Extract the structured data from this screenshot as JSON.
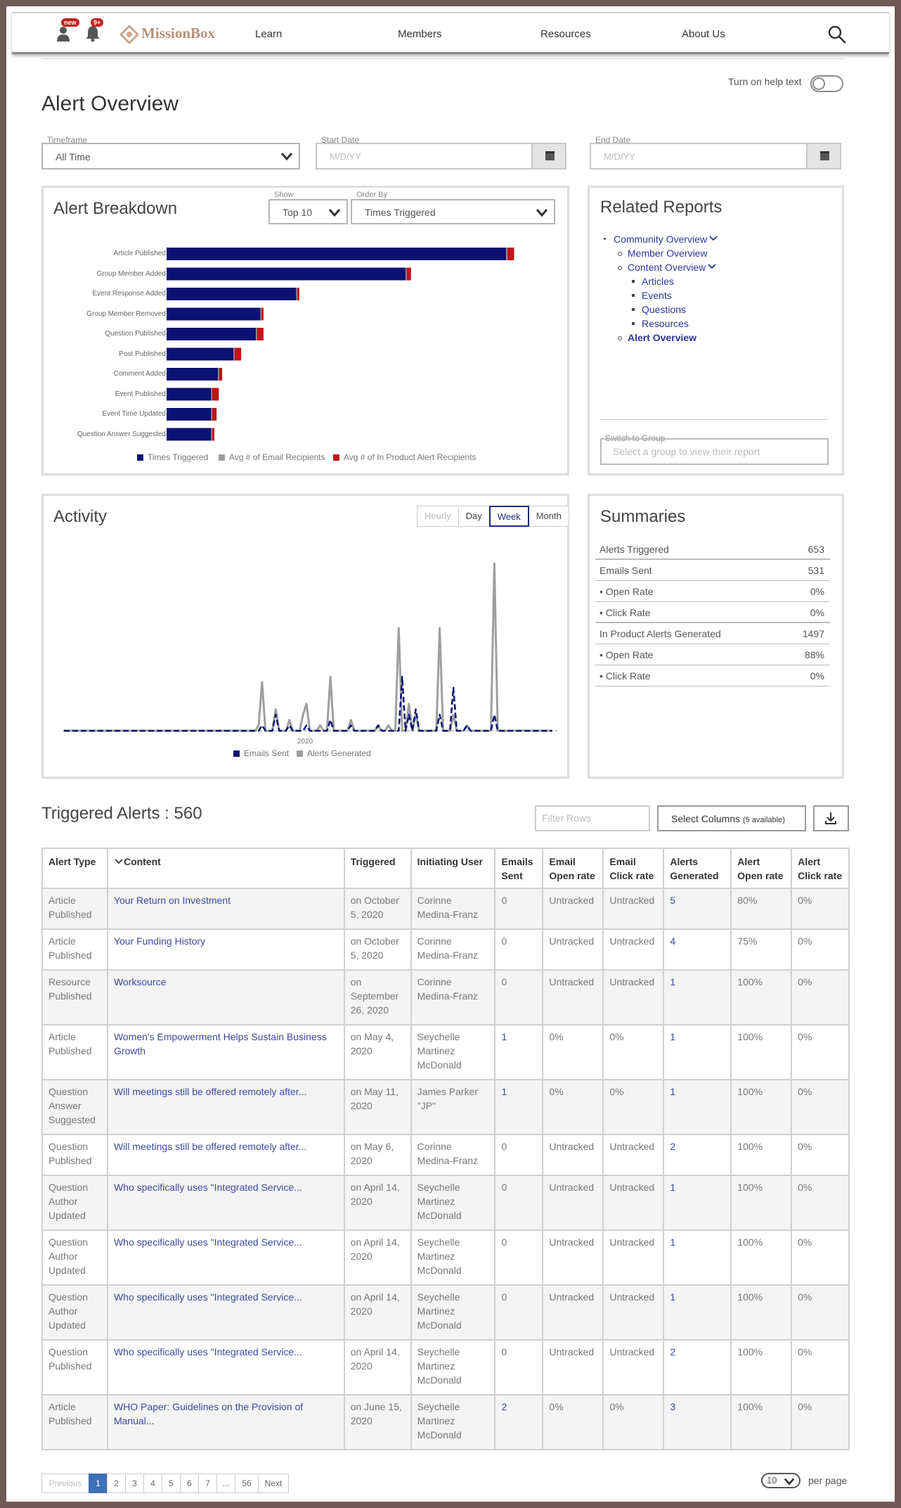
{
  "nav": {
    "badge_user": "new",
    "badge_bell": "9+",
    "logo": "MissionBox",
    "links": [
      "Learn",
      "Members",
      "Resources",
      "About Us"
    ]
  },
  "help_text_label": "Turn on help text",
  "page_title": "Alert Overview",
  "filters": {
    "timeframe_label": "Timeframe",
    "timeframe_value": "All Time",
    "start_label": "Start Date",
    "start_placeholder": "M/D/YY",
    "end_label": "End Date",
    "end_placeholder": "M/D/YY"
  },
  "breakdown": {
    "title": "Alert Breakdown",
    "show_label": "Show",
    "show_value": "Top 10",
    "order_label": "Order By",
    "order_value": "Times Triggered"
  },
  "chart_data": [
    {
      "type": "bar",
      "orientation": "horizontal",
      "stacked": true,
      "title": "Alert Breakdown",
      "categories": [
        "Article Published",
        "Group Member Added",
        "Event Response Added",
        "Group Member Removed",
        "Question Published",
        "Post Published",
        "Comment Added",
        "Event Published",
        "Event Time Updated",
        "Question Answer Suggested"
      ],
      "series": [
        {
          "name": "Times Triggered",
          "color": "#0b1273",
          "values": [
            152,
            107,
            58,
            42,
            40,
            30,
            23,
            20,
            20,
            20
          ]
        },
        {
          "name": "Avg # of Email Recipients",
          "color": "#9e9e9e",
          "values": [
            0.5,
            0.3,
            0.2,
            0.2,
            0.2,
            0.2,
            0.2,
            0.2,
            0.2,
            0.2
          ]
        },
        {
          "name": "Avg # of In Product Alert Recipients",
          "color": "#c0131a",
          "values": [
            3,
            2,
            1,
            1,
            3,
            3,
            1.5,
            3,
            2,
            1
          ]
        }
      ],
      "legend": "bottom"
    },
    {
      "type": "line",
      "title": "Activity",
      "x_tick_labels": [
        "2020"
      ],
      "series": [
        {
          "name": "Emails Sent",
          "color": "#0b1273",
          "style": "dashed",
          "values": [
            0,
            0,
            0,
            0,
            0,
            0,
            0,
            0,
            0,
            0,
            0,
            0,
            0,
            0,
            0,
            0,
            0,
            0,
            0,
            0,
            0,
            0,
            0,
            0,
            0,
            0,
            0,
            0,
            0,
            0,
            0,
            0,
            0,
            0,
            0,
            0,
            0,
            0,
            0,
            0,
            0,
            0,
            0,
            0,
            0,
            0,
            0,
            0,
            0,
            0,
            0,
            0,
            0,
            0,
            0,
            0,
            0,
            0,
            1,
            0,
            0,
            0,
            3,
            0,
            0,
            0,
            1,
            0,
            0,
            0,
            0,
            1,
            0,
            0,
            0,
            0,
            0,
            0,
            2,
            0,
            0,
            0,
            0,
            0,
            1,
            0,
            0,
            0,
            0,
            0,
            0,
            0,
            1,
            0,
            0,
            0,
            0,
            0,
            0,
            10,
            0,
            3,
            0,
            4,
            0,
            0,
            0,
            0,
            0,
            0,
            3,
            0,
            0,
            0,
            8,
            0,
            0,
            0,
            1,
            0,
            0,
            0,
            0,
            0,
            0,
            0,
            3,
            0,
            0,
            0,
            0,
            0,
            0,
            0,
            0,
            0,
            0,
            0,
            0,
            0,
            0,
            0,
            0,
            0
          ]
        },
        {
          "name": "Alerts Generated",
          "color": "#9e9e9e",
          "style": "solid",
          "values": [
            0,
            0,
            0,
            0,
            0,
            0,
            0,
            0,
            0,
            0,
            0,
            0,
            0,
            0,
            0,
            0,
            0,
            0,
            0,
            0,
            0,
            0,
            0,
            0,
            0,
            0,
            0,
            0,
            0,
            0,
            0,
            0,
            0,
            0,
            0,
            0,
            0,
            0,
            0,
            0,
            0,
            0,
            0,
            0,
            0,
            0,
            0,
            0,
            0,
            0,
            0,
            0,
            0,
            0,
            0,
            0,
            0,
            1,
            9,
            0,
            0,
            0,
            4,
            0,
            0,
            0,
            2,
            0,
            0,
            0,
            3,
            5,
            0,
            0,
            0,
            1,
            0,
            0,
            10,
            0,
            0,
            0,
            0,
            0,
            2,
            0,
            0,
            0,
            0,
            0,
            0,
            0,
            1,
            0,
            0,
            1,
            0,
            0,
            19,
            0,
            0,
            5,
            0,
            3,
            0,
            0,
            0,
            0,
            0,
            0,
            19,
            0,
            0,
            0,
            3,
            0,
            0,
            0,
            1,
            0,
            0,
            0,
            0,
            0,
            0,
            0,
            31,
            0,
            0,
            0,
            0,
            0,
            0,
            0,
            0,
            0,
            0,
            0,
            0,
            0,
            0,
            0,
            0,
            0
          ]
        }
      ],
      "legend": "bottom"
    }
  ],
  "related": {
    "title": "Related Reports",
    "items": [
      {
        "label": "Community Overview",
        "level": 0,
        "chevron": true
      },
      {
        "label": "Member Overview",
        "level": 1
      },
      {
        "label": "Content Overview",
        "level": 1,
        "chevron": true
      },
      {
        "label": "Articles",
        "level": 2
      },
      {
        "label": "Events",
        "level": 2
      },
      {
        "label": "Questions",
        "level": 2
      },
      {
        "label": "Resources",
        "level": 2
      },
      {
        "label": "Alert Overview",
        "level": 1,
        "current": true
      }
    ],
    "switch_label": "Switch to Group",
    "switch_placeholder": "Select a group to view their report"
  },
  "activity": {
    "title": "Activity",
    "granularity": [
      "Hourly",
      "Day",
      "Week",
      "Month"
    ],
    "active": "Week"
  },
  "summaries": {
    "title": "Summaries",
    "rows": [
      {
        "label": "Alerts Triggered",
        "value": "653"
      },
      {
        "label": "Emails Sent",
        "value": "531"
      },
      {
        "label": "• Open Rate",
        "value": "0%"
      },
      {
        "label": "• Click Rate",
        "value": "0%"
      },
      {
        "label": "In Product Alerts Generated",
        "value": "1497"
      },
      {
        "label": "• Open Rate",
        "value": "88%"
      },
      {
        "label": "• Click Rate",
        "value": "0%"
      }
    ]
  },
  "triggered": {
    "title": "Triggered Alerts : 560",
    "filter_placeholder": "Filter Rows",
    "select_columns": "Select Columns",
    "select_columns_note": "(5 available)",
    "headers": [
      "Alert Type",
      "Content",
      "Triggered",
      "Initiating User",
      "Emails Sent",
      "Email Open rate",
      "Email Click rate",
      "Alerts Generated",
      "Alert Open rate",
      "Alert Click rate"
    ],
    "rows": [
      [
        "Article Published",
        "Your Return on Investment",
        "on October 5, 2020",
        "Corinne Medina-Franz",
        "0",
        "Untracked",
        "Untracked",
        "5",
        "80%",
        "0%"
      ],
      [
        "Article Published",
        "Your Funding History",
        "on October 5, 2020",
        "Corinne Medina-Franz",
        "0",
        "Untracked",
        "Untracked",
        "4",
        "75%",
        "0%"
      ],
      [
        "Resource Published",
        "Worksource",
        "on September 26, 2020",
        "Corinne Medina-Franz",
        "0",
        "Untracked",
        "Untracked",
        "1",
        "100%",
        "0%"
      ],
      [
        "Article Published",
        "Women's Empowerment Helps Sustain Business Growth",
        "on May 4, 2020",
        "Seychelle Martinez McDonald",
        "1",
        "0%",
        "0%",
        "1",
        "100%",
        "0%"
      ],
      [
        "Question Answer Suggested",
        "Will meetings still be offered remotely after...",
        "on May 11, 2020",
        "James Parker \"JP\"",
        "1",
        "0%",
        "0%",
        "1",
        "100%",
        "0%"
      ],
      [
        "Question Published",
        "Will meetings still be offered remotely after...",
        "on May 6, 2020",
        "Corinne Medina-Franz",
        "0",
        "Untracked",
        "Untracked",
        "2",
        "100%",
        "0%"
      ],
      [
        "Question Author Updated",
        "Who specifically uses \"Integrated Service...",
        "on April 14, 2020",
        "Seychelle Martinez McDonald",
        "0",
        "Untracked",
        "Untracked",
        "1",
        "100%",
        "0%"
      ],
      [
        "Question Author Updated",
        "Who specifically uses \"Integrated Service...",
        "on April 14, 2020",
        "Seychelle Martinez McDonald",
        "0",
        "Untracked",
        "Untracked",
        "1",
        "100%",
        "0%"
      ],
      [
        "Question Author Updated",
        "Who specifically uses \"Integrated Service...",
        "on April 14, 2020",
        "Seychelle Martinez McDonald",
        "0",
        "Untracked",
        "Untracked",
        "1",
        "100%",
        "0%"
      ],
      [
        "Question Published",
        "Who specifically uses \"Integrated Service...",
        "on April 14, 2020",
        "Seychelle Martinez McDonald",
        "0",
        "Untracked",
        "Untracked",
        "2",
        "100%",
        "0%"
      ],
      [
        "Article Published",
        "WHO Paper: Guidelines on the Provision of Manual...",
        "on June 15, 2020",
        "Seychelle Martinez McDonald",
        "2",
        "0%",
        "0%",
        "3",
        "100%",
        "0%"
      ]
    ]
  },
  "pagination": {
    "previous": "Previous",
    "pages": [
      "1",
      "2",
      "3",
      "4",
      "5",
      "6",
      "7",
      "...",
      "56"
    ],
    "next": "Next",
    "per_page_value": "10",
    "per_page_label": "per page"
  }
}
